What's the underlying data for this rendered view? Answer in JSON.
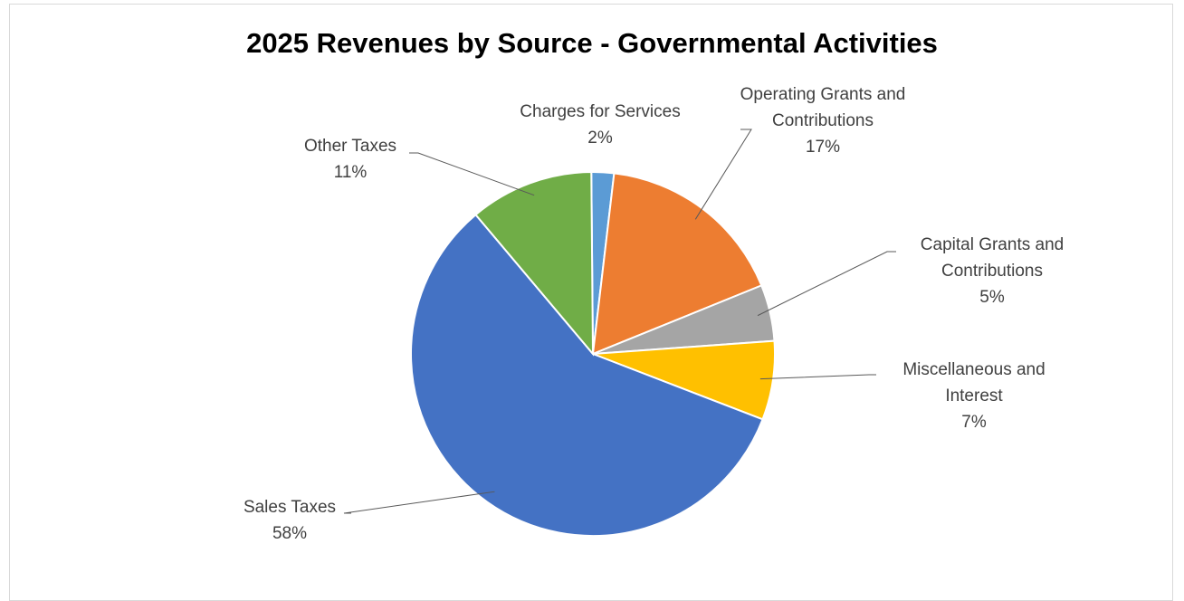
{
  "chart_data": {
    "type": "pie",
    "title": "2025 Revenues by Source - Governmental Activities",
    "legend": "none",
    "slices": [
      {
        "label": "Charges for Services",
        "label_lines": [
          "Charges for Services"
        ],
        "value": 2,
        "value_label": "2%",
        "color": "#5b9bd5"
      },
      {
        "label": "Operating Grants and Contributions",
        "label_lines": [
          "Operating Grants and",
          "Contributions"
        ],
        "value": 17,
        "value_label": "17%",
        "color": "#ed7d31"
      },
      {
        "label": "Capital Grants and Contributions",
        "label_lines": [
          "Capital Grants and",
          "Contributions"
        ],
        "value": 5,
        "value_label": "5%",
        "color": "#a5a5a5"
      },
      {
        "label": "Miscellaneous and Interest",
        "label_lines": [
          "Miscellaneous and",
          "Interest"
        ],
        "value": 7,
        "value_label": "7%",
        "color": "#ffc000"
      },
      {
        "label": "Sales Taxes",
        "label_lines": [
          "Sales Taxes"
        ],
        "value": 58,
        "value_label": "58%",
        "color": "#4472c4"
      },
      {
        "label": "Other Taxes",
        "label_lines": [
          "Other Taxes"
        ],
        "value": 11,
        "value_label": "11%",
        "color": "#70ad47"
      }
    ]
  }
}
